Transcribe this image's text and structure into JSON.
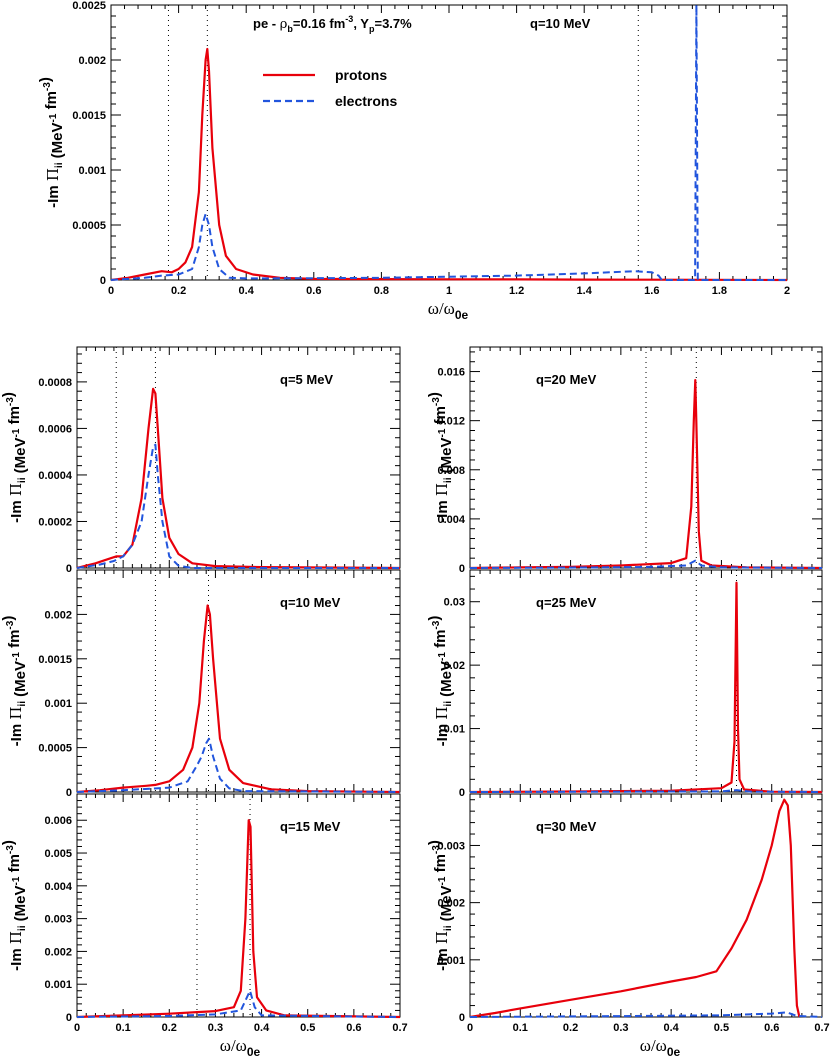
{
  "colors": {
    "protons": "#e8000b",
    "electrons": "#2255dd",
    "frame": "#000000",
    "guide": "#000000"
  },
  "chart_data": [
    {
      "id": "top",
      "type": "line",
      "title": "pe - ρb=0.16 fm-3, Yp=3.7%",
      "annotation": "q=10 MeV",
      "title_parts": {
        "a": "pe - ",
        "rho": "ρ",
        "rho_sub": "b",
        "b": "=0.16 fm",
        "b_sup": "-3",
        "c": ", Y",
        "c_sub": "p",
        "d": "=3.7%"
      },
      "xlim": [
        0,
        2
      ],
      "ylim": [
        0,
        0.0025
      ],
      "xticks": [
        0,
        0.2,
        0.4,
        0.6,
        0.8,
        1,
        1.2,
        1.4,
        1.6,
        1.8,
        2
      ],
      "xtick_labels": [
        "0",
        "0.2",
        "0.4",
        "0.6",
        "0.8",
        "1",
        "1.2",
        "1.4",
        "1.6",
        "1.8",
        "2"
      ],
      "yticks": [
        0,
        0.0005,
        0.001,
        0.0015,
        0.002,
        0.0025
      ],
      "ytick_labels": [
        "0",
        "0.0005",
        "0.001",
        "0.0015",
        "0.002",
        "0.0025"
      ],
      "xlabel": "ω/ω0e",
      "ylabel": "-Im Πii (MeV-1 fm-3)",
      "guides": [
        0.17,
        0.285,
        1.56
      ],
      "legend": {
        "position": "upper-left",
        "entries": [
          "protons",
          "electrons"
        ]
      },
      "series": [
        {
          "name": "protons",
          "style": "solid",
          "x": [
            0,
            0.05,
            0.1,
            0.15,
            0.18,
            0.2,
            0.22,
            0.24,
            0.26,
            0.27,
            0.28,
            0.285,
            0.29,
            0.3,
            0.32,
            0.34,
            0.37,
            0.42,
            0.5,
            0.6,
            0.8,
            1.0,
            1.2,
            1.4,
            1.6,
            2.0
          ],
          "y": [
            0,
            2e-05,
            5e-05,
            8e-05,
            7e-05,
            0.0001,
            0.00016,
            0.0003,
            0.0008,
            0.0015,
            0.002,
            0.0021,
            0.0019,
            0.0012,
            0.0005,
            0.00022,
            0.0001,
            5e-05,
            2e-05,
            1e-05,
            8e-06,
            6e-06,
            5e-06,
            4e-06,
            3e-06,
            0
          ]
        },
        {
          "name": "electrons",
          "style": "dashed",
          "x": [
            0,
            0.1,
            0.15,
            0.2,
            0.24,
            0.26,
            0.27,
            0.28,
            0.29,
            0.3,
            0.32,
            0.35,
            0.4,
            0.6,
            0.8,
            1.0,
            1.2,
            1.4,
            1.55,
            1.6,
            1.62,
            1.63,
            1.728,
            1.732,
            1.736,
            1.8,
            2.0
          ],
          "y": [
            0,
            2e-05,
            4e-05,
            5e-05,
            0.0001,
            0.0003,
            0.0005,
            0.0006,
            0.0005,
            0.0003,
            0.0001,
            2e-05,
            1.5e-05,
            1.6e-05,
            2e-05,
            3e-05,
            4e-05,
            6e-05,
            8e-05,
            7e-05,
            4e-05,
            0,
            0,
            0.0025,
            0,
            0,
            0
          ]
        }
      ]
    },
    {
      "id": "q5",
      "type": "line",
      "annotation": "q=5 MeV",
      "xlim": [
        0,
        0.7
      ],
      "ylim": [
        0,
        0.00095
      ],
      "xticks": [
        0,
        0.1,
        0.2,
        0.3,
        0.4,
        0.5,
        0.6,
        0.7
      ],
      "xtick_labels": [],
      "yticks": [
        0,
        0.0002,
        0.0004,
        0.0006,
        0.0008
      ],
      "ytick_labels": [
        "0",
        "0.0002",
        "0.0004",
        "0.0006",
        "0.0008"
      ],
      "ylabel": "-Im Πii (MeV-1 fm-3)",
      "guides": [
        0.085,
        0.17
      ],
      "series": [
        {
          "name": "protons",
          "style": "solid",
          "x": [
            0,
            0.04,
            0.07,
            0.085,
            0.1,
            0.12,
            0.14,
            0.155,
            0.165,
            0.17,
            0.175,
            0.185,
            0.2,
            0.22,
            0.25,
            0.3,
            0.4,
            0.7
          ],
          "y": [
            0,
            2e-05,
            4e-05,
            5e-05,
            5e-05,
            0.0001,
            0.0003,
            0.0006,
            0.00077,
            0.00075,
            0.0006,
            0.0003,
            0.00013,
            6e-05,
            2e-05,
            8e-06,
            4e-06,
            0
          ]
        },
        {
          "name": "electrons",
          "style": "dashed",
          "x": [
            0,
            0.05,
            0.08,
            0.1,
            0.12,
            0.14,
            0.155,
            0.165,
            0.17,
            0.175,
            0.185,
            0.2,
            0.22,
            0.25,
            0.7
          ],
          "y": [
            0,
            1.5e-05,
            3e-05,
            5e-05,
            0.0001,
            0.0002,
            0.0004,
            0.00052,
            0.00053,
            0.0004,
            0.0002,
            5e-05,
            1e-05,
            0,
            0
          ]
        }
      ]
    },
    {
      "id": "q20",
      "type": "line",
      "annotation": "q=20 MeV",
      "xlim": [
        0,
        0.7
      ],
      "ylim": [
        0,
        0.018
      ],
      "xticks": [
        0,
        0.1,
        0.2,
        0.3,
        0.4,
        0.5,
        0.6,
        0.7
      ],
      "xtick_labels": [],
      "yticks": [
        0,
        0.004,
        0.008,
        0.012,
        0.016
      ],
      "ytick_labels": [
        "0",
        "0.004",
        "0.008",
        "0.012",
        "0.016"
      ],
      "ylabel": "-Im Πii (MeV-1 fm-3)",
      "guides": [
        0.35,
        0.45
      ],
      "series": [
        {
          "name": "protons",
          "style": "solid",
          "x": [
            0,
            0.1,
            0.2,
            0.3,
            0.4,
            0.43,
            0.44,
            0.445,
            0.448,
            0.45,
            0.455,
            0.46,
            0.48,
            0.55,
            0.7
          ],
          "y": [
            0,
            5e-05,
            0.0001,
            0.0002,
            0.0004,
            0.0008,
            0.005,
            0.012,
            0.0153,
            0.012,
            0.003,
            0.0006,
            0.0002,
            5e-05,
            0
          ]
        },
        {
          "name": "electrons",
          "style": "dashed",
          "x": [
            0,
            0.2,
            0.35,
            0.43,
            0.448,
            0.46,
            0.5,
            0.7
          ],
          "y": [
            0,
            3e-05,
            8e-05,
            0.0002,
            0.0006,
            0.0002,
            5e-05,
            0
          ]
        }
      ]
    },
    {
      "id": "q10",
      "type": "line",
      "annotation": "q=10 MeV",
      "xlim": [
        0,
        0.7
      ],
      "ylim": [
        0,
        0.0025
      ],
      "xticks": [
        0,
        0.1,
        0.2,
        0.3,
        0.4,
        0.5,
        0.6,
        0.7
      ],
      "xtick_labels": [],
      "yticks": [
        0,
        0.0005,
        0.001,
        0.0015,
        0.002
      ],
      "ytick_labels": [
        "0",
        "0.0005",
        "0.001",
        "0.0015",
        "0.002"
      ],
      "ylabel": "-Im Πii (MeV-1 fm-3)",
      "guides": [
        0.17,
        0.285
      ],
      "series": [
        {
          "name": "protons",
          "style": "solid",
          "x": [
            0,
            0.05,
            0.1,
            0.15,
            0.17,
            0.2,
            0.23,
            0.25,
            0.265,
            0.275,
            0.283,
            0.288,
            0.295,
            0.31,
            0.33,
            0.36,
            0.42,
            0.5,
            0.7
          ],
          "y": [
            0,
            2e-05,
            5e-05,
            7e-05,
            8e-05,
            0.00012,
            0.00025,
            0.0005,
            0.001,
            0.0017,
            0.0021,
            0.002,
            0.0015,
            0.0006,
            0.00025,
            0.0001,
            3e-05,
            1e-05,
            0
          ]
        },
        {
          "name": "electrons",
          "style": "dashed",
          "x": [
            0,
            0.1,
            0.2,
            0.24,
            0.26,
            0.27,
            0.28,
            0.286,
            0.295,
            0.31,
            0.33,
            0.36,
            0.7
          ],
          "y": [
            0,
            2e-05,
            5e-05,
            0.00012,
            0.0003,
            0.0004,
            0.00055,
            0.0006,
            0.0004,
            0.00015,
            4e-05,
            1e-05,
            0
          ]
        }
      ]
    },
    {
      "id": "q25",
      "type": "line",
      "annotation": "q=25 MeV",
      "xlim": [
        0,
        0.7
      ],
      "ylim": [
        0,
        0.035
      ],
      "xticks": [
        0,
        0.1,
        0.2,
        0.3,
        0.4,
        0.5,
        0.6,
        0.7
      ],
      "xtick_labels": [],
      "yticks": [
        0,
        0.01,
        0.02,
        0.03
      ],
      "ytick_labels": [
        "0",
        "0.01",
        "0.02",
        "0.03"
      ],
      "ylabel": "-Im Πii (MeV-1 fm-3)",
      "guides": [
        0.45,
        0.53
      ],
      "series": [
        {
          "name": "protons",
          "style": "solid",
          "x": [
            0,
            0.2,
            0.4,
            0.5,
            0.52,
            0.526,
            0.53,
            0.533,
            0.536,
            0.545,
            0.6,
            0.7
          ],
          "y": [
            0,
            8e-05,
            0.0002,
            0.0006,
            0.0015,
            0.008,
            0.033,
            0.01,
            0.002,
            0.0004,
            5e-05,
            0
          ]
        },
        {
          "name": "electrons",
          "style": "dashed",
          "x": [
            0,
            0.3,
            0.5,
            0.53,
            0.56,
            0.7
          ],
          "y": [
            0,
            4e-05,
            0.0001,
            0.0003,
            5e-05,
            0
          ]
        }
      ]
    },
    {
      "id": "q15",
      "type": "line",
      "annotation": "q=15 MeV",
      "xlim": [
        0,
        0.7
      ],
      "ylim": [
        0,
        0.0068
      ],
      "xticks": [
        0,
        0.1,
        0.2,
        0.3,
        0.4,
        0.5,
        0.6,
        0.7
      ],
      "xtick_labels": [
        "0",
        "0.1",
        "0.2",
        "0.3",
        "0.4",
        "0.5",
        "0.6",
        "0.7"
      ],
      "yticks": [
        0,
        0.001,
        0.002,
        0.003,
        0.004,
        0.005,
        0.006
      ],
      "ytick_labels": [
        "0",
        "0.001",
        "0.002",
        "0.003",
        "0.004",
        "0.005",
        "0.006"
      ],
      "xlabel": "ω/ω0e",
      "ylabel": "-Im Πii (MeV-1 fm-3)",
      "guides": [
        0.26,
        0.375
      ],
      "series": [
        {
          "name": "protons",
          "style": "solid",
          "x": [
            0,
            0.1,
            0.2,
            0.26,
            0.3,
            0.34,
            0.355,
            0.365,
            0.372,
            0.376,
            0.382,
            0.39,
            0.41,
            0.45,
            0.7
          ],
          "y": [
            0,
            5e-05,
            0.0001,
            0.00015,
            0.00018,
            0.0003,
            0.0008,
            0.003,
            0.006,
            0.0058,
            0.002,
            0.0006,
            0.0002,
            5e-05,
            0
          ]
        },
        {
          "name": "electrons",
          "style": "dashed",
          "x": [
            0,
            0.2,
            0.3,
            0.355,
            0.365,
            0.375,
            0.385,
            0.4,
            0.7
          ],
          "y": [
            0,
            3e-05,
            8e-05,
            0.0002,
            0.0005,
            0.0008,
            0.0003,
            5e-05,
            0
          ]
        }
      ]
    },
    {
      "id": "q30",
      "type": "line",
      "annotation": "q=30 MeV",
      "xlim": [
        0,
        0.7
      ],
      "ylim": [
        0,
        0.0039
      ],
      "xticks": [
        0,
        0.1,
        0.2,
        0.3,
        0.4,
        0.5,
        0.6,
        0.7
      ],
      "xtick_labels": [
        "0",
        "0.1",
        "0.2",
        "0.3",
        "0.4",
        "0.5",
        "0.6",
        "0.7"
      ],
      "yticks": [
        0,
        0.001,
        0.002,
        0.003
      ],
      "ytick_labels": [
        "0",
        "0.001",
        "0.002",
        "0.003"
      ],
      "xlabel": "ω/ω0e",
      "ylabel": "-Im Πii (MeV-1 fm-3)",
      "guides": [],
      "series": [
        {
          "name": "protons",
          "style": "solid",
          "x": [
            0,
            0.05,
            0.1,
            0.2,
            0.3,
            0.4,
            0.45,
            0.49,
            0.52,
            0.55,
            0.58,
            0.6,
            0.615,
            0.625,
            0.632,
            0.638,
            0.645,
            0.65,
            0.655
          ],
          "y": [
            0,
            7e-05,
            0.00015,
            0.0003,
            0.00045,
            0.00062,
            0.0007,
            0.0008,
            0.0012,
            0.0017,
            0.0024,
            0.003,
            0.0036,
            0.0038,
            0.0037,
            0.003,
            0.0012,
            0.0002,
            0
          ]
        },
        {
          "name": "electrons",
          "style": "dashed",
          "x": [
            0,
            0.3,
            0.5,
            0.6,
            0.63,
            0.65,
            0.7
          ],
          "y": [
            0,
            1.5e-05,
            3e-05,
            6e-05,
            8e-05,
            2e-05,
            0
          ]
        }
      ]
    }
  ]
}
